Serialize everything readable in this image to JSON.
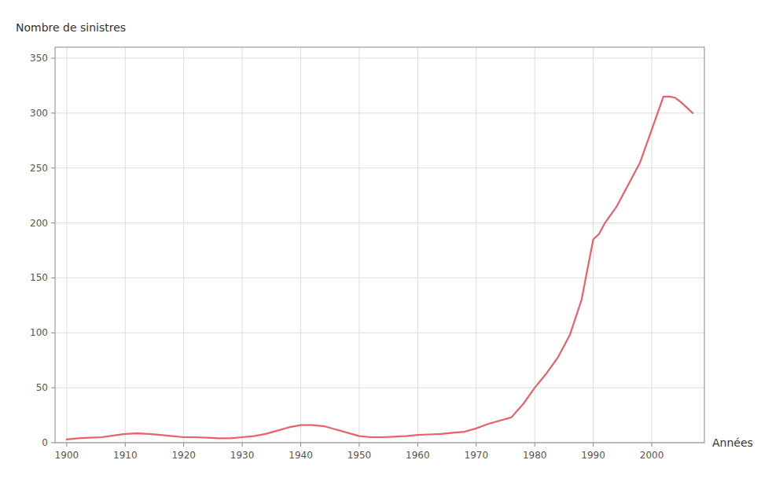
{
  "chart_data": {
    "type": "line",
    "y_label": "Nombre de sinistres",
    "x_label": "Années",
    "color": "#e8606a",
    "x": [
      1900,
      1902,
      1904,
      1906,
      1908,
      1910,
      1912,
      1914,
      1916,
      1918,
      1920,
      1922,
      1924,
      1926,
      1928,
      1930,
      1932,
      1934,
      1936,
      1938,
      1940,
      1942,
      1944,
      1946,
      1948,
      1950,
      1952,
      1954,
      1956,
      1958,
      1960,
      1962,
      1964,
      1966,
      1968,
      1970,
      1972,
      1974,
      1976,
      1978,
      1980,
      1982,
      1984,
      1986,
      1988,
      1990,
      1991,
      1992,
      1994,
      1996,
      1998,
      2000,
      2001,
      2002,
      2003,
      2004,
      2005,
      2006,
      2007
    ],
    "values": [
      3,
      4,
      4.5,
      5,
      6.5,
      8,
      8.5,
      8,
      7,
      6,
      5,
      5,
      4.5,
      4,
      4,
      5,
      6,
      8,
      11,
      14,
      16,
      16,
      15,
      12,
      9,
      6,
      5,
      5,
      5.5,
      6,
      7,
      7.5,
      8,
      9,
      10,
      13,
      17,
      20,
      23,
      35,
      50,
      63,
      78,
      98,
      130,
      185,
      190,
      200,
      215,
      235,
      255,
      285,
      300,
      315,
      315,
      314,
      310,
      305,
      300
    ],
    "xlim": [
      1898,
      2009
    ],
    "ylim": [
      0,
      360
    ],
    "xticks": [
      1900,
      1910,
      1920,
      1930,
      1940,
      1950,
      1960,
      1970,
      1980,
      1990,
      2000
    ],
    "yticks": [
      0,
      50,
      100,
      150,
      200,
      250,
      300,
      350
    ],
    "grid": true
  }
}
